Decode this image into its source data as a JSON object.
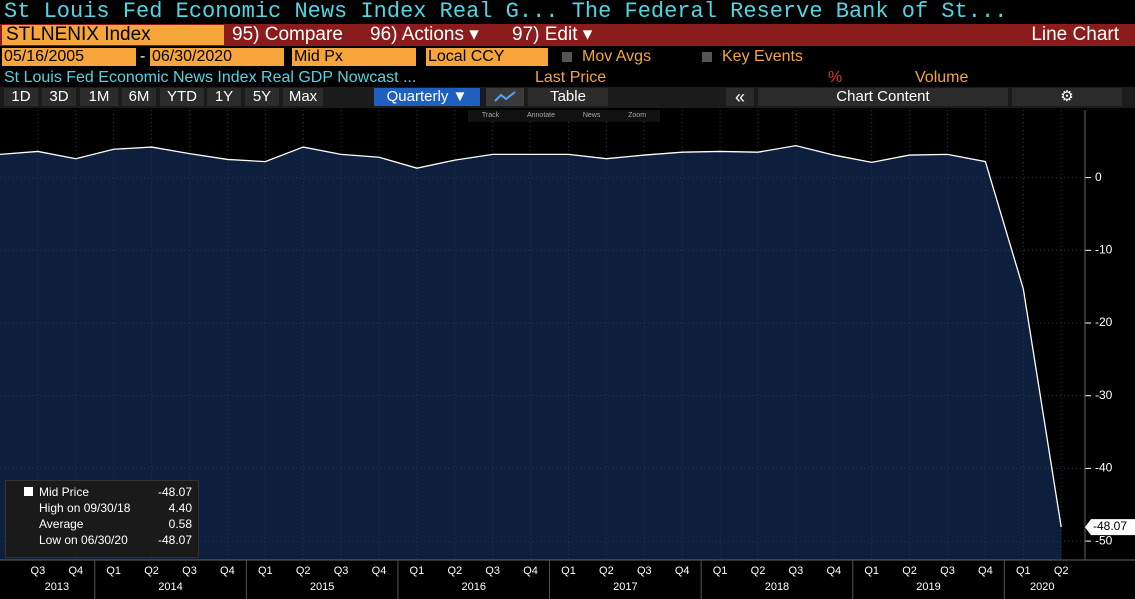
{
  "header": {
    "title": "St Louis Fed Economic News Index Real G...  The Federal Reserve Bank of St...",
    "ticker": "STLNENIX Index",
    "compare": "95) Compare",
    "actions": "96) Actions ▾",
    "edit": "97) Edit ▾",
    "view": "Line Chart"
  },
  "controls": {
    "start_date": "05/16/2005",
    "dash": "-",
    "end_date": "06/30/2020",
    "price": "Mid Px",
    "currency": "Local CCY",
    "mov_avgs": "Mov Avgs",
    "key_events": "Key Events"
  },
  "legend_row": {
    "series": "St Louis Fed Economic News Index Real GDP Nowcast ...",
    "last_price": "Last Price",
    "pct": "%",
    "volume": "Volume"
  },
  "buttons": [
    "1D",
    "3D",
    "1M",
    "6M",
    "YTD",
    "1Y",
    "5Y",
    "Max"
  ],
  "period": "Quarterly ▼",
  "table": "Table",
  "collapse": "«",
  "chart_content": "Chart Content",
  "tools": [
    "Track",
    "Annotate",
    "News",
    "Zoom"
  ],
  "stats": [
    {
      "label": "Mid Price",
      "value": "-48.07"
    },
    {
      "label": "High on 09/30/18",
      "value": "4.40"
    },
    {
      "label": "Average",
      "value": "0.58"
    },
    {
      "label": "Low on 06/30/20",
      "value": "-48.07"
    }
  ],
  "chart_data": {
    "type": "area",
    "categories": [
      null,
      "Q3",
      "Q4",
      "Q1",
      "Q2",
      "Q3",
      "Q4",
      "Q1",
      "Q2",
      "Q3",
      "Q4",
      "Q1",
      "Q2",
      "Q3",
      "Q4",
      "Q1",
      "Q2",
      "Q3",
      "Q4",
      "Q1",
      "Q2",
      "Q3",
      "Q4",
      "Q1",
      "Q2",
      "Q3",
      "Q4",
      "Q1",
      "Q2"
    ],
    "years": [
      "2013",
      "2014",
      "2015",
      "2016",
      "2017",
      "2018",
      "2019",
      "2020"
    ],
    "series": [
      {
        "name": "Mid Price",
        "color": "#ffffff",
        "fill": "#0d1f3c",
        "values": [
          3.2,
          3.6,
          2.6,
          3.9,
          4.2,
          3.3,
          2.5,
          2.2,
          4.2,
          3.2,
          2.8,
          1.3,
          2.4,
          3.2,
          3.2,
          3.2,
          2.6,
          3.1,
          3.5,
          3.6,
          3.5,
          4.4,
          3.1,
          2.1,
          3.1,
          3.2,
          2.2,
          -15.3,
          -48.07
        ]
      }
    ],
    "ylim": [
      -52.6,
      9.3
    ],
    "yticks": [
      0,
      -10,
      -20,
      -30,
      -40,
      -50
    ],
    "grid": true
  }
}
